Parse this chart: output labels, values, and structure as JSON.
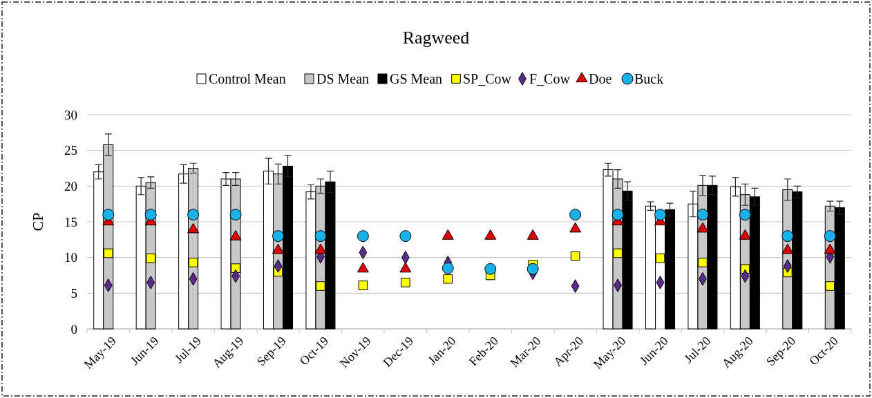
{
  "chart_data": {
    "type": "bar",
    "title": "Ragweed",
    "ylabel": "CP",
    "categories": [
      "May-19",
      "Jun-19",
      "Jul-19",
      "Aug-19",
      "Sep-19",
      "Oct-19",
      "Nov-19",
      "Dec-19",
      "Jan-20",
      "Feb-20",
      "Mar-20",
      "Apr-20",
      "May-20",
      "Jun-20",
      "Jul-20",
      "Aug-20",
      "Sep-20",
      "Oct-20"
    ],
    "series": [
      {
        "name": "Control Mean",
        "color": "#ffffff",
        "values": [
          22,
          20,
          21.7,
          21,
          22.1,
          19.2,
          null,
          null,
          null,
          null,
          null,
          null,
          22.3,
          17.2,
          17.5,
          19.9,
          null,
          null
        ],
        "errors": [
          1,
          1.2,
          1.3,
          0.9,
          1.8,
          1,
          null,
          null,
          null,
          null,
          null,
          null,
          0.9,
          0.6,
          1.8,
          1.3,
          null,
          null
        ]
      },
      {
        "name": "DS Mean",
        "color": "#c8c8c8",
        "values": [
          25.8,
          20.5,
          22.5,
          21,
          21.7,
          20,
          null,
          null,
          null,
          null,
          null,
          null,
          21,
          null,
          20.1,
          18.8,
          19.5,
          17.2
        ],
        "errors": [
          1.5,
          0.8,
          0.7,
          0.9,
          1.4,
          1,
          null,
          null,
          null,
          null,
          null,
          null,
          1.3,
          null,
          1.4,
          1.5,
          1.5,
          0.7
        ]
      },
      {
        "name": "GS Mean",
        "color": "#000000",
        "values": [
          null,
          null,
          null,
          null,
          22.8,
          20.6,
          null,
          null,
          null,
          null,
          null,
          null,
          19.3,
          16.7,
          20.1,
          18.5,
          19.2,
          17
        ],
        "errors": [
          null,
          null,
          null,
          null,
          1.5,
          1.5,
          null,
          null,
          null,
          null,
          null,
          null,
          1.3,
          0.9,
          1.3,
          1.2,
          0.8,
          0.9
        ]
      },
      {
        "name": "SP_Cow",
        "type": "scatter",
        "marker": "square",
        "color": "#ffff00",
        "values": [
          10.6,
          9.9,
          9.3,
          8.5,
          8,
          6,
          6.1,
          6.5,
          7,
          7.5,
          9,
          10.2,
          10.6,
          9.9,
          9.3,
          8.4,
          7.9,
          6
        ]
      },
      {
        "name": "F_Cow",
        "type": "scatter",
        "marker": "diamond",
        "color": "#5b2a8c",
        "values": [
          6.1,
          6.5,
          7,
          7.4,
          8.8,
          10.1,
          10.7,
          10,
          9.3,
          null,
          7.8,
          6,
          6.1,
          6.5,
          7,
          7.4,
          8.8,
          10.1
        ]
      },
      {
        "name": "Doe",
        "type": "scatter",
        "marker": "triangle",
        "color": "#e00000",
        "values": [
          15,
          15,
          13.9,
          12.9,
          11,
          11,
          8.4,
          8.4,
          13,
          13,
          13,
          14,
          15,
          15,
          14,
          13,
          11,
          11
        ]
      },
      {
        "name": "Buck",
        "type": "scatter",
        "marker": "circle",
        "color": "#1ab0e8",
        "values": [
          16,
          16,
          16,
          16,
          13,
          13,
          13,
          13,
          8.5,
          8.4,
          8.4,
          16,
          16,
          16,
          16,
          16,
          13,
          13
        ]
      }
    ],
    "ylim": [
      0,
      30
    ],
    "yticks": [
      0,
      5,
      10,
      15,
      20,
      25,
      30
    ],
    "grid": "y",
    "legend": "top"
  }
}
